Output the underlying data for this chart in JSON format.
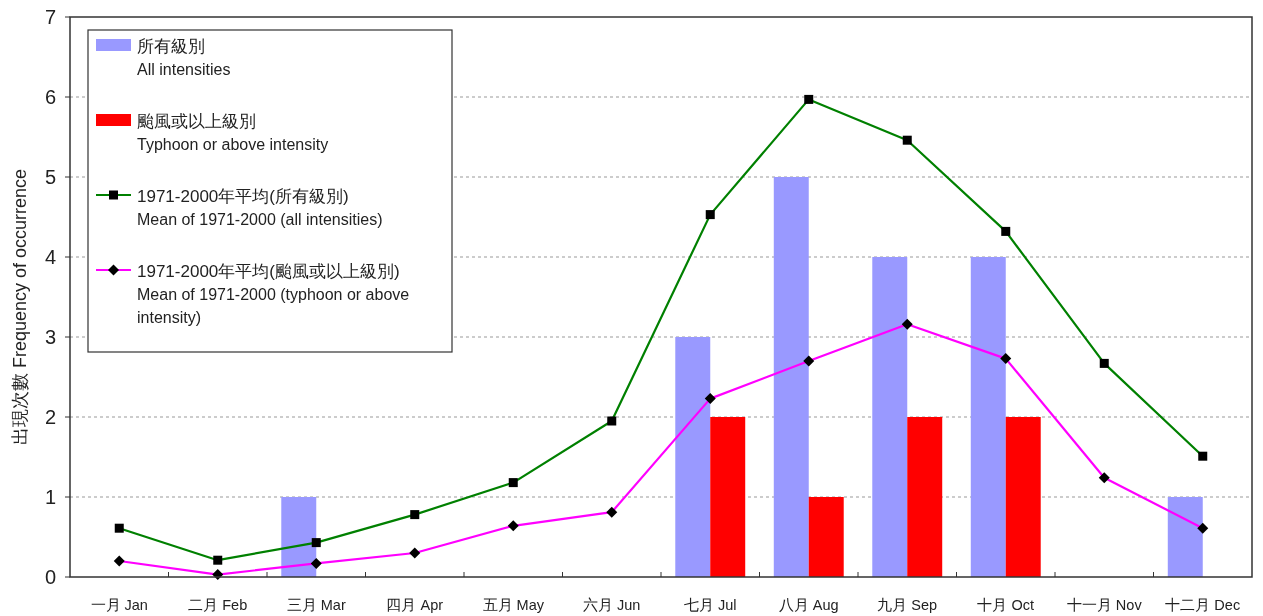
{
  "chart_data": {
    "type": "bar",
    "categories": [
      "一月 Jan",
      "二月 Feb",
      "三月 Mar",
      "四月 Apr",
      "五月 May",
      "六月 Jun",
      "七月 Jul",
      "八月 Aug",
      "九月 Sep",
      "十月 Oct",
      "十一月 Nov",
      "十二月 Dec"
    ],
    "ylabel": "出現次數  Frequency of occurrence",
    "ylim": [
      0,
      7
    ],
    "yticks": [
      0,
      1,
      2,
      3,
      4,
      5,
      6,
      7
    ],
    "grid": "y",
    "legend": "top left",
    "series": [
      {
        "name": "所有級別\nAll intensities",
        "color": "#9999ff",
        "values": [
          0,
          0,
          1,
          0,
          0,
          0,
          3,
          5,
          4,
          4,
          0,
          1
        ]
      },
      {
        "name": "颱風或以上級別\nTyphoon or above intensity",
        "color": "#ff0000",
        "values": [
          0,
          0,
          0,
          0,
          0,
          0,
          2,
          1,
          2,
          2,
          0,
          0
        ]
      },
      {
        "name": "1971-2000年平均(所有級別)\nMean of 1971-2000 (all intensities)",
        "type": "line",
        "marker": "square",
        "color": "#008000",
        "values": [
          0.61,
          0.21,
          0.43,
          0.78,
          1.18,
          1.95,
          4.53,
          5.97,
          5.46,
          4.32,
          2.67,
          1.51
        ]
      },
      {
        "name": "1971-2000年平均(颱風或以上級別)\nMean of 1971-2000 (typhoon or above\nintensity)",
        "type": "line",
        "marker": "diamond",
        "color": "#ff00ff",
        "values": [
          0.2,
          0.03,
          0.17,
          0.3,
          0.64,
          0.81,
          2.23,
          2.7,
          3.16,
          2.73,
          1.24,
          0.61
        ]
      }
    ]
  }
}
